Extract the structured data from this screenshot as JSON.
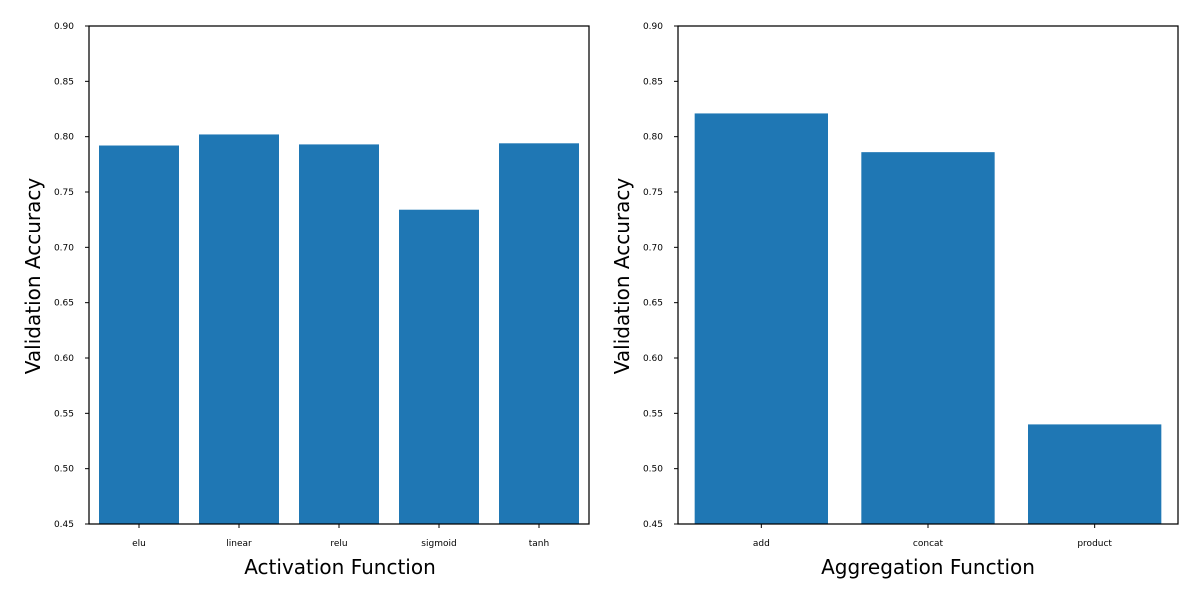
{
  "chart_data": [
    {
      "type": "bar",
      "categories": [
        "elu",
        "linear",
        "relu",
        "sigmoid",
        "tanh"
      ],
      "values": [
        0.792,
        0.802,
        0.793,
        0.734,
        0.794
      ],
      "title": "",
      "xlabel": "Activation Function",
      "ylabel": "Validation Accuracy",
      "ylim": [
        0.45,
        0.9
      ],
      "yticks": [
        "0.45",
        "0.50",
        "0.55",
        "0.60",
        "0.65",
        "0.70",
        "0.75",
        "0.80",
        "0.85",
        "0.90"
      ],
      "grid": false,
      "bar_color": "#1f77b4"
    },
    {
      "type": "bar",
      "categories": [
        "add",
        "concat",
        "product"
      ],
      "values": [
        0.821,
        0.786,
        0.54
      ],
      "title": "",
      "xlabel": "Aggregation Function",
      "ylabel": "Validation Accuracy",
      "ylim": [
        0.45,
        0.9
      ],
      "yticks": [
        "0.45",
        "0.50",
        "0.55",
        "0.60",
        "0.65",
        "0.70",
        "0.75",
        "0.80",
        "0.85",
        "0.90"
      ],
      "grid": false,
      "bar_color": "#1f77b4"
    }
  ]
}
